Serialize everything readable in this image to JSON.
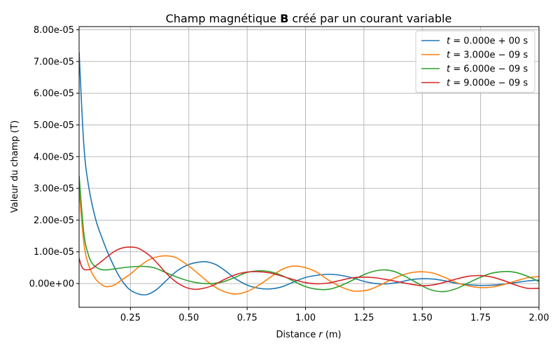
{
  "chart_data": {
    "type": "line",
    "title_prefix": "Champ magnétique ",
    "title_bold": "B",
    "title_suffix": " créé par un courant variable",
    "xlabel_prefix": "Distance ",
    "xlabel_var": "r",
    "xlabel_suffix": " (m)",
    "ylabel": "Valeur du champ (T)",
    "xlim": [
      0.03,
      2.0
    ],
    "ylim": [
      -7.5e-06,
      8.1e-05
    ],
    "xticks": [
      0.25,
      0.5,
      0.75,
      1.0,
      1.25,
      1.5,
      1.75,
      2.0
    ],
    "xtick_labels": [
      "0.25",
      "0.50",
      "0.75",
      "1.00",
      "1.25",
      "1.50",
      "1.75",
      "2.00"
    ],
    "yticks": [
      0,
      1e-05,
      2e-05,
      3e-05,
      4e-05,
      5e-05,
      6e-05,
      7e-05,
      8e-05
    ],
    "ytick_labels": [
      "0.00e+00",
      "1.00e-05",
      "2.00e-05",
      "3.00e-05",
      "4.00e-05",
      "5.00e-05",
      "6.00e-05",
      "7.00e-05",
      "8.00e-05"
    ],
    "grid": true,
    "legend_position": "top-right",
    "series": [
      {
        "name": "t = 0.000e+00 s",
        "label_main": "t",
        "label_rest": " = 0.000e + 00 s",
        "color": "#1f77b4",
        "x": [
          0.03,
          0.05,
          0.07,
          0.1,
          0.13,
          0.16,
          0.2,
          0.24,
          0.28,
          0.32,
          0.36,
          0.4,
          0.45,
          0.5,
          0.55,
          0.58,
          0.62,
          0.66,
          0.7,
          0.75,
          0.8,
          0.85,
          0.9,
          0.95,
          1.0,
          1.05,
          1.1,
          1.15,
          1.2,
          1.25,
          1.3,
          1.35,
          1.4,
          1.45,
          1.5,
          1.55,
          1.6,
          1.65,
          1.7,
          1.75,
          1.8,
          1.85,
          1.9,
          1.95,
          2.0
        ],
        "y": [
          7.3e-05,
          4.4e-05,
          3.1e-05,
          2.05e-05,
          1.4e-05,
          8.5e-06,
          2.5e-06,
          -1.5e-06,
          -3.2e-06,
          -3.5e-06,
          -2e-06,
          7e-07,
          4e-06,
          6e-06,
          6.8e-06,
          6.8e-06,
          5.8e-06,
          3.8e-06,
          1.5e-06,
          -5e-07,
          -1.5e-06,
          -1.7e-06,
          -1e-06,
          5e-07,
          1.9e-06,
          2.6e-06,
          2.9e-06,
          2.6e-06,
          1.8e-06,
          7e-07,
          0,
          -1e-07,
          4e-07,
          1.2e-06,
          1.5e-06,
          1.4e-06,
          8e-07,
          0,
          -4e-07,
          -6e-07,
          -5e-07,
          -2e-07,
          3e-07,
          8e-07,
          1.1e-06
        ]
      },
      {
        "name": "t = 3.000e-09 s",
        "label_main": "t",
        "label_rest": " = 3.000e − 09 s",
        "color": "#ff7f0e",
        "x": [
          0.03,
          0.05,
          0.07,
          0.1,
          0.13,
          0.15,
          0.18,
          0.21,
          0.25,
          0.29,
          0.33,
          0.37,
          0.41,
          0.45,
          0.5,
          0.55,
          0.6,
          0.65,
          0.7,
          0.75,
          0.8,
          0.85,
          0.9,
          0.95,
          1.0,
          1.05,
          1.1,
          1.15,
          1.2,
          1.23,
          1.27,
          1.32,
          1.36,
          1.4,
          1.45,
          1.5,
          1.55,
          1.6,
          1.65,
          1.7,
          1.75,
          1.8,
          1.85,
          1.9,
          1.95,
          2.0
        ],
        "y": [
          3e-05,
          1.3e-05,
          6e-06,
          1.5e-06,
          -5e-07,
          -1e-06,
          -5e-07,
          1e-06,
          3e-06,
          5.5e-06,
          7.5e-06,
          8.5e-06,
          8.7e-06,
          8e-06,
          5.5e-06,
          2.5e-06,
          -5e-07,
          -2.5e-06,
          -3.3e-06,
          -2.5e-06,
          -5e-07,
          2e-06,
          4.5e-06,
          5.5e-06,
          5e-06,
          3.5e-06,
          1e-06,
          -1e-06,
          -2.3e-06,
          -2.4e-06,
          -2e-06,
          -5e-07,
          1e-06,
          2.3e-06,
          3.4e-06,
          3.7e-06,
          3.2e-06,
          1.8e-06,
          2e-07,
          -8e-07,
          -1.3e-06,
          -1.1e-06,
          -3e-07,
          8e-07,
          1.8e-06,
          2.2e-06
        ]
      },
      {
        "name": "t = 6.000e-09 s",
        "label_main": "t",
        "label_rest": " = 6.000e − 09 s",
        "color": "#2ca02c",
        "x": [
          0.03,
          0.05,
          0.07,
          0.09,
          0.12,
          0.15,
          0.18,
          0.22,
          0.26,
          0.3,
          0.35,
          0.4,
          0.45,
          0.5,
          0.55,
          0.6,
          0.65,
          0.7,
          0.75,
          0.8,
          0.85,
          0.9,
          0.95,
          1.0,
          1.05,
          1.1,
          1.15,
          1.2,
          1.25,
          1.3,
          1.34,
          1.38,
          1.42,
          1.47,
          1.52,
          1.56,
          1.6,
          1.65,
          1.7,
          1.75,
          1.8,
          1.86,
          1.9,
          1.95,
          2.0
        ],
        "y": [
          3.4e-05,
          1.6e-05,
          9e-06,
          6e-06,
          4.5e-06,
          4.3e-06,
          4.6e-06,
          5e-06,
          5.3e-06,
          5.4e-06,
          5e-06,
          3.5e-06,
          2e-06,
          8e-07,
          1e-07,
          0,
          6e-07,
          2e-06,
          3.5e-06,
          4e-06,
          3.7e-06,
          2.5e-06,
          7e-07,
          -1e-06,
          -1.8e-06,
          -1.8e-06,
          -7e-07,
          1e-06,
          2.8e-06,
          4e-06,
          4.3e-06,
          3.8e-06,
          2.5e-06,
          5e-07,
          -1.5e-06,
          -2.4e-06,
          -2.5e-06,
          -1.5e-06,
          3e-07,
          2e-06,
          3.3e-06,
          3.8e-06,
          3.5e-06,
          2.3e-06,
          6e-07
        ]
      },
      {
        "name": "t = 9.000e-09 s",
        "label_main": "t",
        "label_rest": " = 9.000e − 09 s",
        "color": "#d62728",
        "x": [
          0.03,
          0.04,
          0.05,
          0.06,
          0.08,
          0.1,
          0.13,
          0.16,
          0.19,
          0.22,
          0.25,
          0.28,
          0.31,
          0.34,
          0.37,
          0.4,
          0.44,
          0.48,
          0.52,
          0.55,
          0.6,
          0.65,
          0.7,
          0.75,
          0.8,
          0.85,
          0.9,
          0.95,
          1.0,
          1.05,
          1.1,
          1.15,
          1.2,
          1.25,
          1.3,
          1.35,
          1.4,
          1.45,
          1.5,
          1.55,
          1.6,
          1.65,
          1.7,
          1.75,
          1.8,
          1.85,
          1.9,
          1.95,
          2.0
        ],
        "y": [
          8e-06,
          5.5e-06,
          4.5e-06,
          4.3e-06,
          4.5e-06,
          5.5e-06,
          7.2e-06,
          9e-06,
          1.05e-05,
          1.13e-05,
          1.15e-05,
          1.12e-05,
          1e-05,
          8.3e-06,
          6e-06,
          3.5e-06,
          8e-07,
          -1e-06,
          -1.8e-06,
          -1.7e-06,
          -7e-07,
          1.2e-06,
          2.8e-06,
          3.6e-06,
          3.7e-06,
          3.3e-06,
          2.3e-06,
          1.2e-06,
          3e-07,
          -1e-07,
          2e-07,
          1e-06,
          1.8e-06,
          2e-06,
          1.8e-06,
          1.2e-06,
          5e-07,
          -2e-07,
          -7e-07,
          -4e-07,
          5e-07,
          1.5e-06,
          2.3e-06,
          2.5e-06,
          2e-06,
          9e-07,
          -5e-07,
          -1.5e-06,
          -1.5e-06
        ]
      }
    ]
  }
}
